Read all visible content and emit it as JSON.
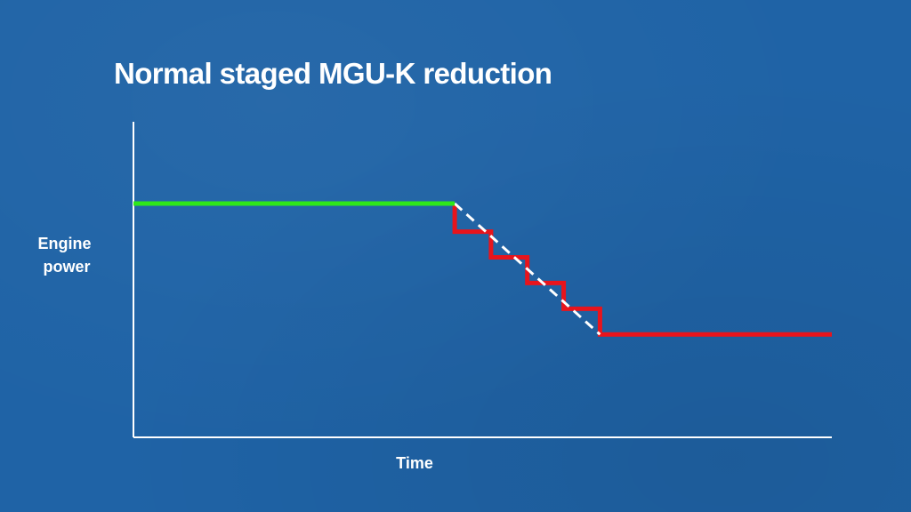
{
  "slide": {
    "title": "Normal staged MGU-K reduction"
  },
  "chart_data": {
    "type": "line",
    "title": "Normal staged MGU-K reduction",
    "xlabel": "Time",
    "ylabel_lines": [
      "Engine",
      "power"
    ],
    "xlim": [
      0,
      100
    ],
    "ylim": [
      0,
      100
    ],
    "grid": false,
    "series": [
      {
        "role": "full-power",
        "color": "#2ee81a",
        "style": "solid",
        "points": [
          [
            0,
            100
          ],
          [
            46,
            100
          ]
        ]
      },
      {
        "role": "staged-reduction",
        "color": "#e8141c",
        "style": "solid",
        "points": [
          [
            46,
            100
          ],
          [
            46,
            88
          ],
          [
            51.2,
            88
          ],
          [
            51.2,
            77
          ],
          [
            56.4,
            77
          ],
          [
            56.4,
            66
          ],
          [
            61.6,
            66
          ],
          [
            61.6,
            55
          ],
          [
            66.8,
            55
          ],
          [
            66.8,
            44
          ],
          [
            100,
            44
          ]
        ]
      },
      {
        "role": "linear-reference",
        "color": "#ffffff",
        "style": "dashed",
        "points": [
          [
            46,
            100
          ],
          [
            66.8,
            44
          ]
        ]
      }
    ]
  }
}
